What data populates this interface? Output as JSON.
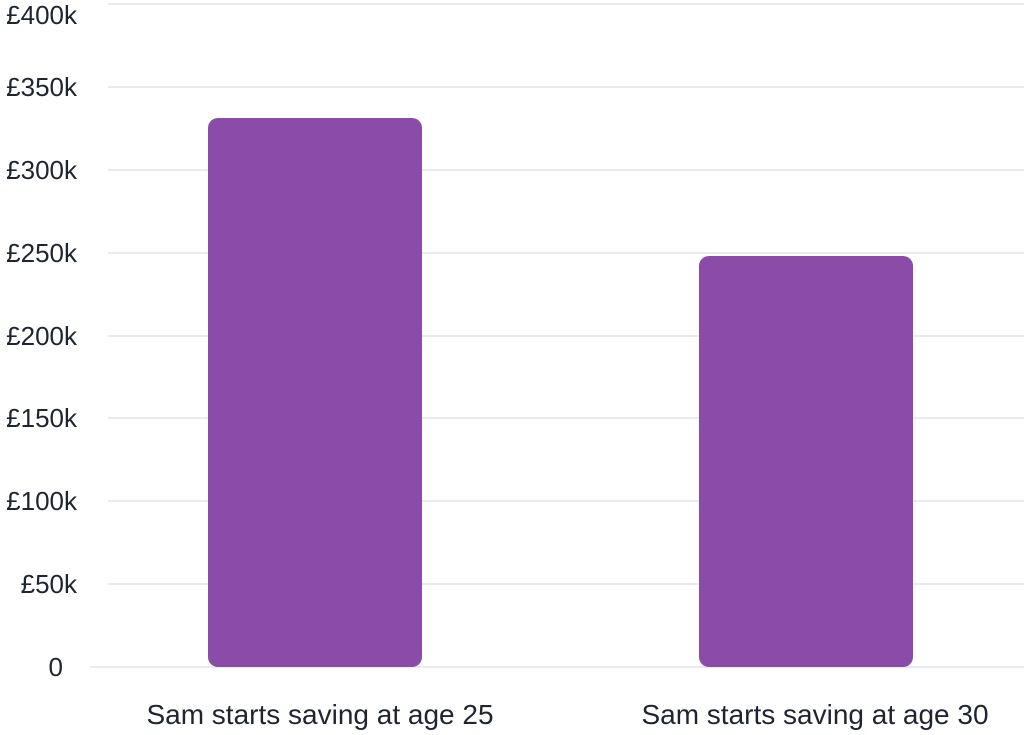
{
  "chart_data": {
    "type": "bar",
    "categories": [
      "Sam starts saving at age 25",
      "Sam starts saving at age 30"
    ],
    "values": [
      331000,
      248000
    ],
    "ylim": [
      0,
      400000
    ],
    "yticks": [
      {
        "value": 400000,
        "label": "£400k"
      },
      {
        "value": 350000,
        "label": "£350k"
      },
      {
        "value": 300000,
        "label": "£300k"
      },
      {
        "value": 250000,
        "label": "£250k"
      },
      {
        "value": 200000,
        "label": "£200k"
      },
      {
        "value": 150000,
        "label": "£150k"
      },
      {
        "value": 100000,
        "label": "£100k"
      },
      {
        "value": 50000,
        "label": "£50k"
      },
      {
        "value": 0,
        "label": "0"
      }
    ],
    "title": "",
    "xlabel": "",
    "ylabel": "",
    "grid": true,
    "legend_position": "none",
    "colors": {
      "bar": "#8a4ca8",
      "gridline": "#e9ebee",
      "text": "#1f2433",
      "background": "#ffffff"
    }
  }
}
